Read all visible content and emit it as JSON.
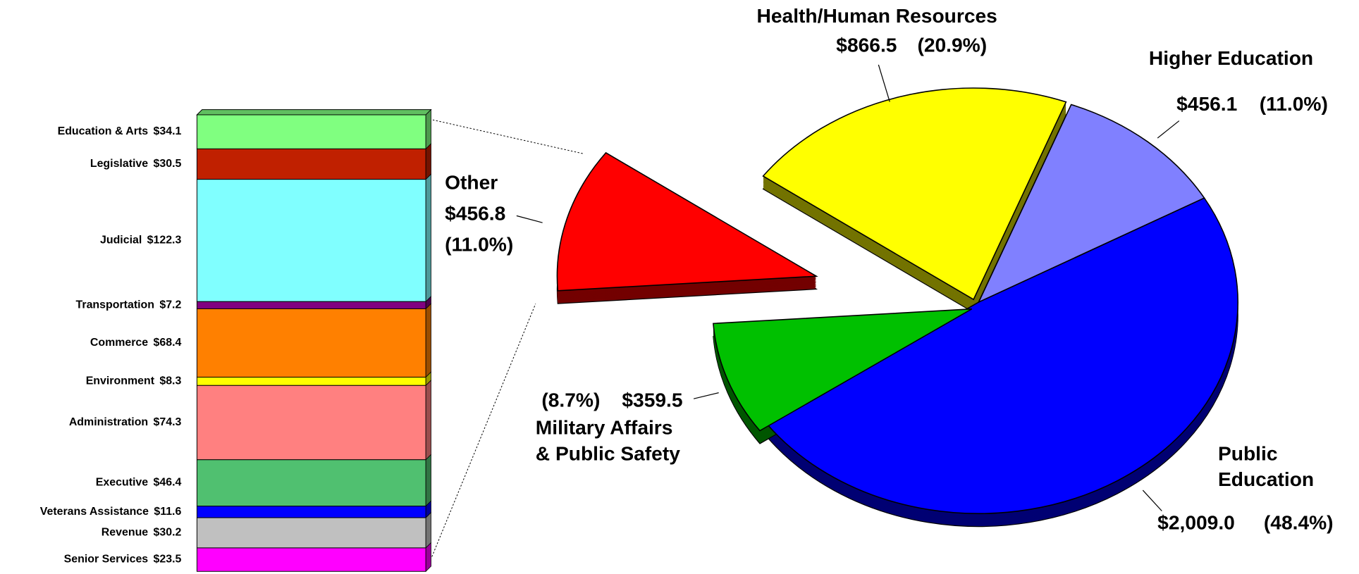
{
  "chart_data": [
    {
      "type": "pie",
      "categories": [
        [
          "Public",
          "Education"
        ],
        [
          "Military Affairs",
          "& Public Safety"
        ],
        [
          "Other"
        ],
        [
          "Health/Human  Resources"
        ],
        [
          "Higher Education"
        ]
      ],
      "values": [
        2009.0,
        359.5,
        456.8,
        866.5,
        456.1
      ],
      "value_labels": [
        "$2,009.0",
        "$359.5",
        "$456.8",
        "$866.5",
        "$456.1"
      ],
      "percents": [
        48.4,
        8.7,
        11.0,
        20.9,
        11.0
      ],
      "percent_labels": [
        "(48.4%)",
        "(8.7%)",
        "(11.0%)",
        "(20.9%)",
        "(11.0%)"
      ],
      "colors": [
        "#0000ff",
        "#00c000",
        "#ff0000",
        "#ffff00",
        "#8080ff"
      ]
    },
    {
      "type": "bar",
      "categories": [
        "Education & Arts",
        "Legislative",
        "Judicial",
        "Transportation",
        "Commerce",
        "Environment",
        "Administration",
        "Executive",
        "Veterans Assistance",
        "Revenue",
        "Senior Services"
      ],
      "values": [
        34.1,
        30.5,
        122.3,
        7.2,
        68.4,
        8.3,
        74.3,
        46.4,
        11.6,
        30.2,
        23.5
      ],
      "value_labels": [
        "$34.1",
        "$30.5",
        "$122.3",
        "$7.2",
        "$68.4",
        "$8.3",
        "$74.3",
        "$46.4",
        "$11.6",
        "$30.2",
        "$23.5"
      ],
      "colors": [
        "#80ff80",
        "#c02000",
        "#80ffff",
        "#800080",
        "#ff8000",
        "#ffff00",
        "#ff8080",
        "#50c070",
        "#0000ff",
        "#c0c0c0",
        "#ff00ff"
      ]
    }
  ]
}
